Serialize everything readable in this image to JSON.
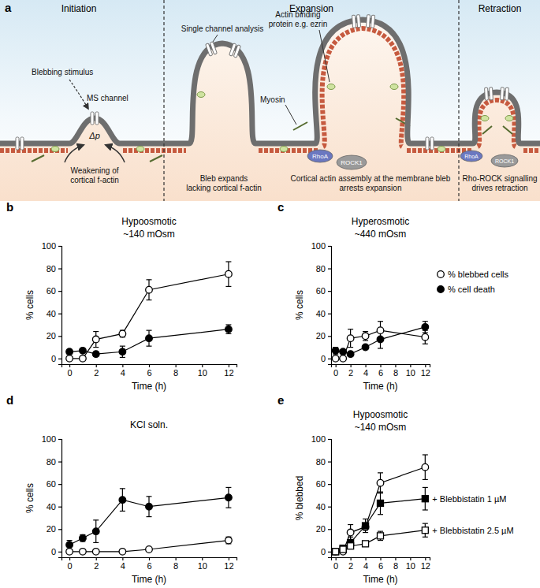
{
  "diagram": {
    "panel_label": "a",
    "stages": [
      "Initiation",
      "Expansion",
      "Retraction"
    ],
    "labels": {
      "blebbing_stimulus": [
        "Blebbing stimulus"
      ],
      "ms_channel": [
        "MS channel"
      ],
      "delta_p": [
        "Δp"
      ],
      "weakening": [
        "Weakening of",
        "cortical f-actin"
      ],
      "single_channel": [
        "Single channel analysis"
      ],
      "actin_binding": [
        "Actin binding",
        "protein e.g. ezrin"
      ],
      "myosin": [
        "Myosin"
      ],
      "bleb_expands": [
        "Bleb expands",
        "lacking cortical f-actin"
      ],
      "cortical_assembly": [
        "Cortical actin assembly at the membrane bleb",
        "arrests expansion"
      ],
      "rhoa": [
        "RhoA"
      ],
      "rock1": [
        "ROCK1"
      ],
      "retraction_note": [
        "Rho-ROCK signalling",
        "drives retraction"
      ]
    }
  },
  "chart_data": [
    {
      "type": "line",
      "panel_label": "b",
      "title": "Hypoosmotic",
      "subtitle": "~140 mOsm",
      "x_label": "Time (h)",
      "y_label": "% cells",
      "x": [
        0,
        1,
        2,
        4,
        6,
        12
      ],
      "xlim": [
        -0.6,
        12.6
      ],
      "xticks": [
        0,
        2,
        4,
        6,
        8,
        10,
        12
      ],
      "ylim": [
        -5,
        100
      ],
      "yticks": [
        0,
        20,
        40,
        60,
        80,
        100
      ],
      "series": [
        {
          "color": "#000000",
          "marker": "open-circle",
          "values": [
            0,
            0,
            17,
            22,
            61,
            75
          ],
          "errors": [
            0,
            0,
            7,
            3,
            9,
            11
          ]
        },
        {
          "color": "#000000",
          "marker": "circle",
          "values": [
            6,
            7,
            4,
            6,
            18,
            26
          ],
          "errors": [
            2,
            1,
            2,
            5,
            7,
            4
          ]
        }
      ]
    },
    {
      "type": "line",
      "panel_label": "c",
      "title": "Hyperosmotic",
      "subtitle": "~440 mOsm",
      "x_label": "Time (h)",
      "y_label": "% cells",
      "x": [
        0,
        1,
        2,
        4,
        6,
        12
      ],
      "xlim": [
        -0.6,
        12.6
      ],
      "xticks": [
        0,
        2,
        4,
        6,
        8,
        10,
        12
      ],
      "ylim": [
        -5,
        100
      ],
      "yticks": [
        0,
        20,
        40,
        60,
        80,
        100
      ],
      "legend": "right",
      "series": [
        {
          "name": "% blebbed cells",
          "color": "#000000",
          "marker": "open-circle",
          "values": [
            0,
            0,
            18,
            20,
            25,
            19
          ],
          "errors": [
            0,
            0,
            8,
            4,
            8,
            6
          ]
        },
        {
          "name": "% cell death",
          "color": "#000000",
          "marker": "circle",
          "values": [
            7,
            6,
            4,
            10,
            17,
            28
          ],
          "errors": [
            3,
            1,
            2,
            2,
            8,
            5
          ]
        }
      ]
    },
    {
      "type": "line",
      "panel_label": "d",
      "title": "KCl soln.",
      "x_label": "Time (h)",
      "y_label": "% cells",
      "x": [
        0,
        1,
        2,
        4,
        6,
        12
      ],
      "xlim": [
        -0.6,
        12.6
      ],
      "xticks": [
        0,
        2,
        4,
        6,
        8,
        10,
        12
      ],
      "ylim": [
        -5,
        100
      ],
      "yticks": [
        0,
        20,
        40,
        60,
        80,
        100
      ],
      "series": [
        {
          "color": "#000000",
          "marker": "open-circle",
          "values": [
            0,
            0,
            0,
            0,
            2,
            10
          ],
          "errors": [
            0,
            0,
            0,
            1,
            1,
            3
          ]
        },
        {
          "color": "#000000",
          "marker": "circle",
          "values": [
            6,
            12,
            18,
            46,
            40,
            48
          ],
          "errors": [
            4,
            3,
            10,
            10,
            9,
            9
          ]
        }
      ]
    },
    {
      "type": "line",
      "panel_label": "e",
      "title": "Hypoosmotic",
      "subtitle": "~140 mOsm",
      "x_label": "Time (h)",
      "y_label": "% blebbed",
      "x": [
        0,
        1,
        2,
        4,
        6,
        12
      ],
      "xlim": [
        -0.6,
        12.6
      ],
      "xticks": [
        0,
        2,
        4,
        6,
        8,
        10,
        12
      ],
      "ylim": [
        -5,
        100
      ],
      "yticks": [
        0,
        20,
        40,
        60,
        80,
        100
      ],
      "series": [
        {
          "color": "#000000",
          "marker": "open-circle",
          "values": [
            0,
            0,
            17,
            22,
            61,
            75
          ],
          "errors": [
            0,
            0,
            7,
            3,
            9,
            11
          ]
        },
        {
          "name": "+ Blebbistatin 1 µM",
          "color": "#000000",
          "marker": "square",
          "values": [
            0,
            3,
            8,
            23,
            43,
            47
          ],
          "errors": [
            0,
            1,
            5,
            6,
            10,
            10
          ]
        },
        {
          "name": "+ Blebbistatin 2.5 µM",
          "color": "#000000",
          "marker": "open-square",
          "values": [
            0,
            2,
            5,
            7,
            14,
            19
          ],
          "errors": [
            0,
            1,
            2,
            2,
            4,
            6
          ]
        }
      ]
    }
  ]
}
